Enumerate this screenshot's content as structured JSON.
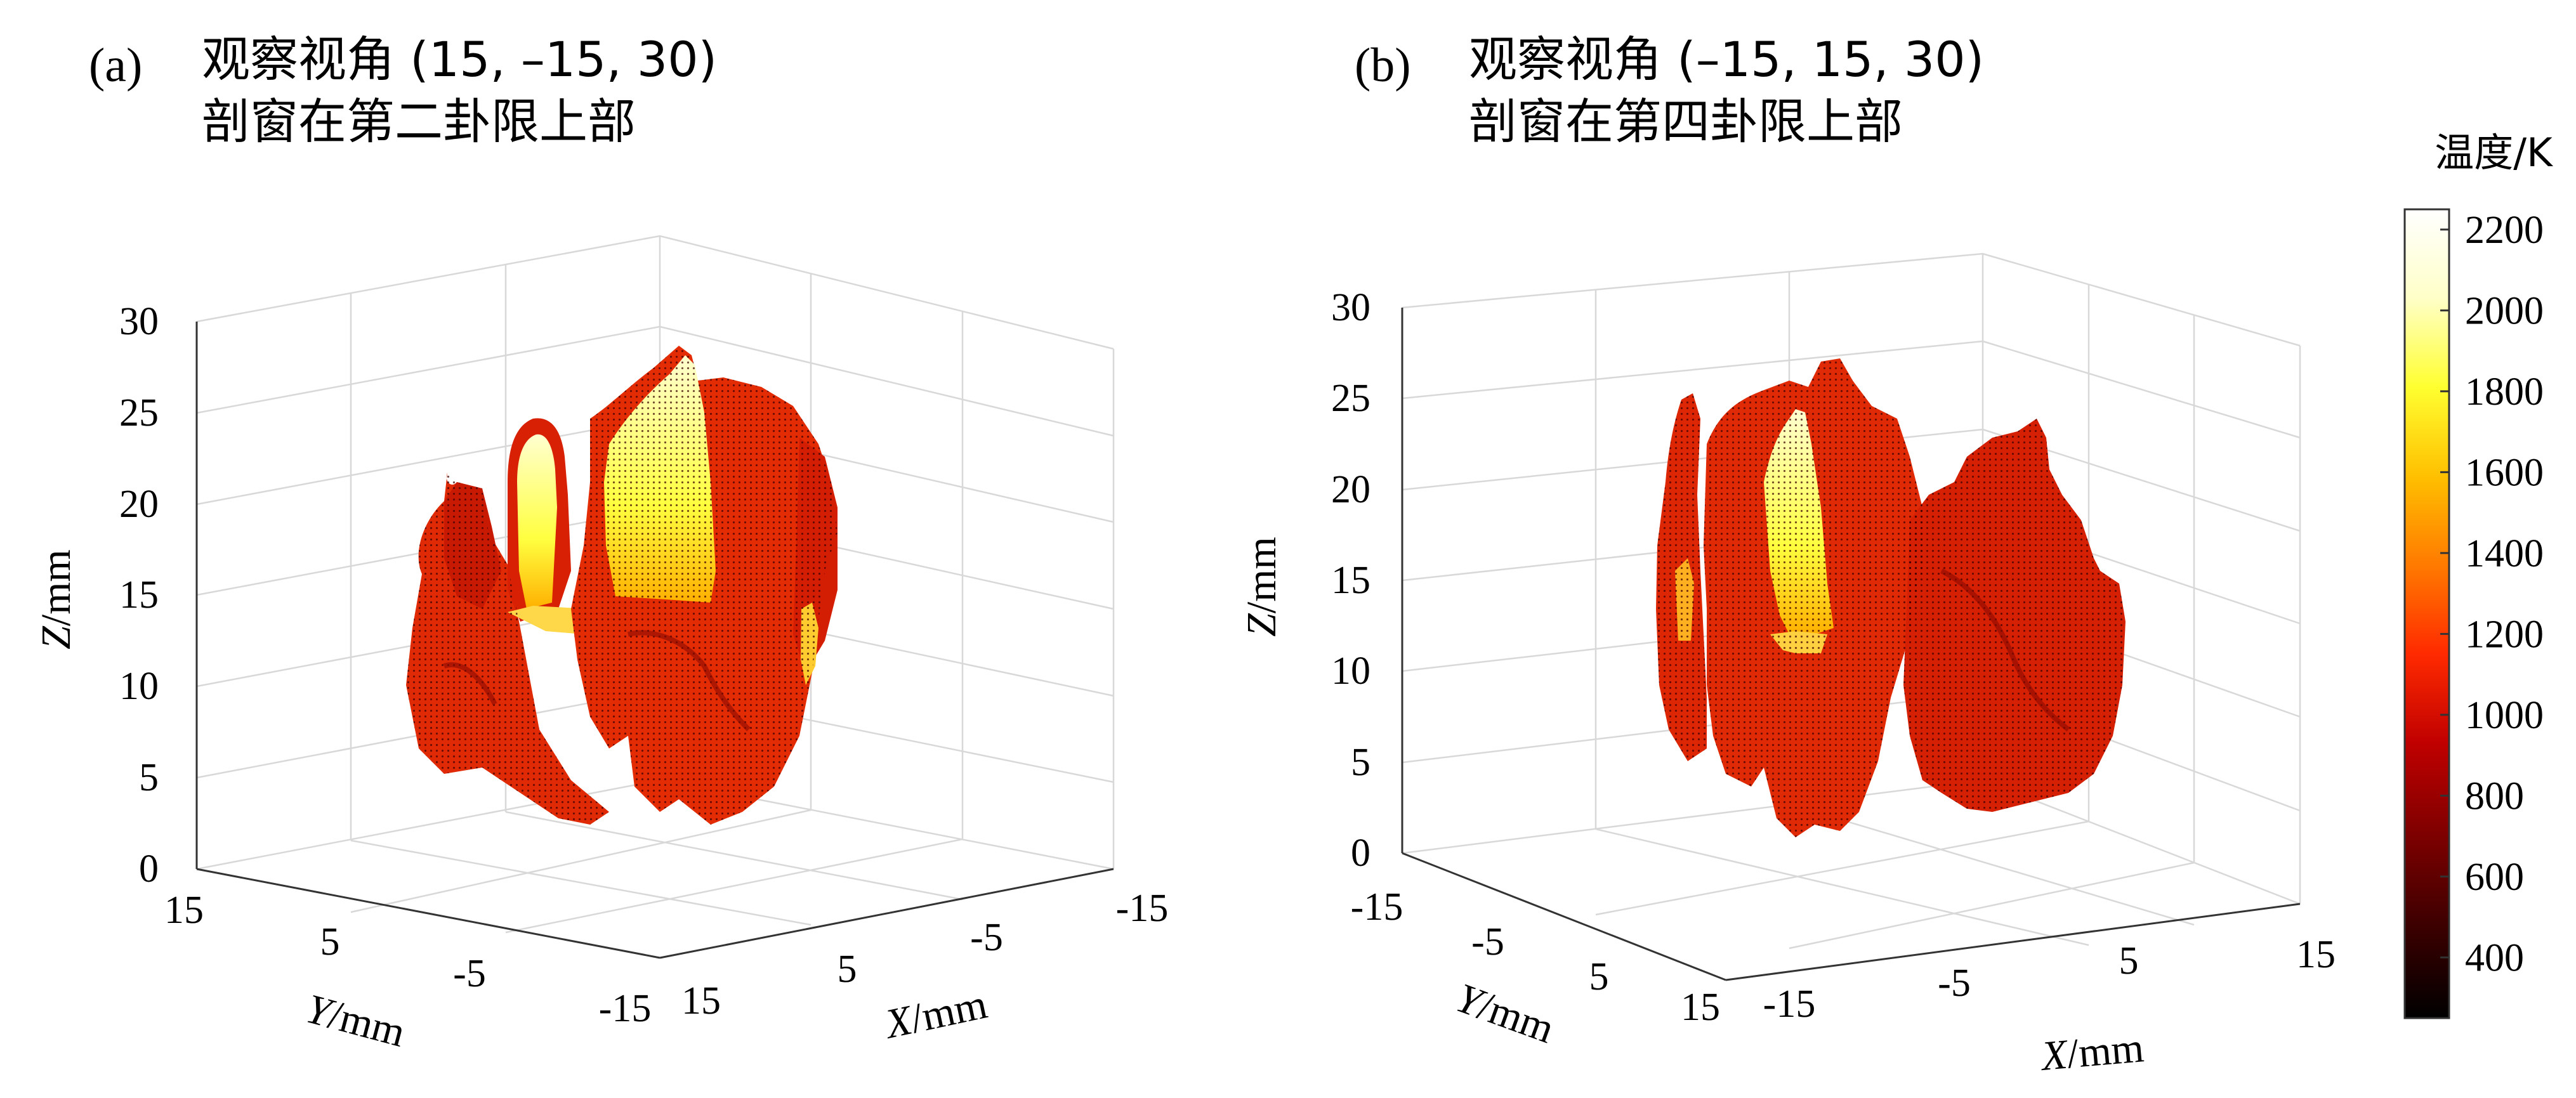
{
  "chart_data": [
    {
      "type": "scatter3d",
      "panel_label": "(a)",
      "title_lines": [
        "观察视角 (15, –15, 30)",
        "剖窗在第二卦限上部"
      ],
      "view": {
        "azimuth": 15,
        "elevation": -15,
        "distance": 30
      },
      "xlabel_var": "X",
      "xlabel_unit": "/mm",
      "ylabel_var": "Y",
      "ylabel_unit": "/mm",
      "zlabel_var": "Z",
      "zlabel_unit": "/mm",
      "xlim": [
        -15,
        15
      ],
      "ylim": [
        -15,
        15
      ],
      "zlim": [
        0,
        30
      ],
      "x_ticks": [
        "15",
        "5",
        "-5",
        "-15"
      ],
      "y_ticks": [
        "15",
        "5",
        "-5",
        "-15"
      ],
      "z_ticks": [
        "0",
        "5",
        "10",
        "15",
        "20",
        "25",
        "30"
      ],
      "description_values": {
        "max_temperature_K": 2100,
        "cutaway": "second octant, upper part"
      }
    },
    {
      "type": "scatter3d",
      "panel_label": "(b)",
      "title_lines": [
        "观察视角 (–15, 15, 30)",
        "剖窗在第四卦限上部"
      ],
      "view": {
        "azimuth": -15,
        "elevation": 15,
        "distance": 30
      },
      "xlabel_var": "X",
      "xlabel_unit": "/mm",
      "ylabel_var": "Y",
      "ylabel_unit": "/mm",
      "zlabel_var": "Z",
      "zlabel_unit": "/mm",
      "xlim": [
        -15,
        15
      ],
      "ylim": [
        -15,
        15
      ],
      "zlim": [
        0,
        30
      ],
      "x_ticks": [
        "-15",
        "-5",
        "5",
        "15"
      ],
      "y_ticks": [
        "-15",
        "-5",
        "5",
        "15"
      ],
      "z_ticks": [
        "0",
        "5",
        "10",
        "15",
        "20",
        "25",
        "30"
      ],
      "description_values": {
        "max_temperature_K": 2000,
        "cutaway": "fourth octant, upper part"
      }
    }
  ],
  "colorbar": {
    "title": "温度/K",
    "min": 250,
    "max": 2250,
    "ticks": [
      400,
      600,
      800,
      1000,
      1200,
      1400,
      1600,
      1800,
      2000,
      2200
    ],
    "colormap": [
      "#000000",
      "#3a0000",
      "#7a0000",
      "#c00000",
      "#ff2a00",
      "#ff7a00",
      "#ffc000",
      "#ffff30",
      "#ffffc8",
      "#ffffff"
    ]
  }
}
